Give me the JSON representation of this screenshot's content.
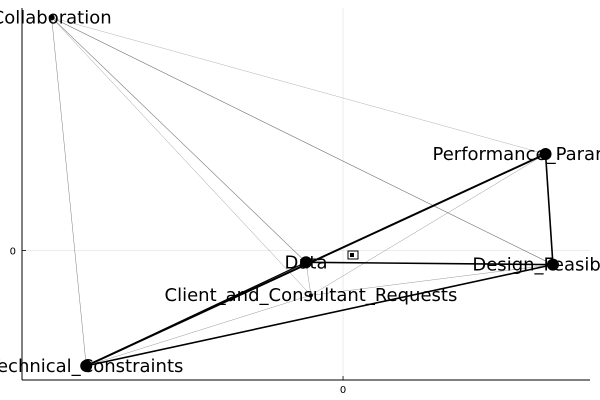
{
  "chart_data": {
    "type": "network",
    "title": "",
    "xlabel": "",
    "ylabel": "",
    "x_ticks": [
      "0"
    ],
    "y_ticks": [
      "0"
    ],
    "grid": true,
    "legend": "none",
    "nodes": [
      {
        "id": "Collaboration",
        "label": "Collaboration",
        "x": -1.18,
        "y": 0.99
      },
      {
        "id": "Performance_Parameters",
        "label": "Performance_Parameters",
        "x": 0.82,
        "y": 0.41
      },
      {
        "id": "Data",
        "label": "Data",
        "x": -0.15,
        "y": -0.05
      },
      {
        "id": "Design_Feasibility",
        "label": "Design_Feasibility",
        "x": 0.85,
        "y": -0.06
      },
      {
        "id": "Client_and_Consultant_Requests",
        "label": "Client_and_Consultant_Requests",
        "x": -0.13,
        "y": -0.19
      },
      {
        "id": "Technical_Constraints",
        "label": "Technical_Constraints",
        "x": -1.04,
        "y": -0.49
      }
    ],
    "edges": [
      {
        "source": "Collaboration",
        "target": "Performance_Parameters",
        "weight": 0.3
      },
      {
        "source": "Collaboration",
        "target": "Design_Feasibility",
        "weight": 0.6
      },
      {
        "source": "Collaboration",
        "target": "Data",
        "weight": 0.6
      },
      {
        "source": "Collaboration",
        "target": "Client_and_Consultant_Requests",
        "weight": 0.4
      },
      {
        "source": "Collaboration",
        "target": "Technical_Constraints",
        "weight": 0.5
      },
      {
        "source": "Collaboration",
        "target": "Design_Feasibility",
        "weight": 0.3
      },
      {
        "source": "Performance_Parameters",
        "target": "Design_Feasibility",
        "weight": 1.6
      },
      {
        "source": "Performance_Parameters",
        "target": "Technical_Constraints",
        "weight": 2.0
      },
      {
        "source": "Performance_Parameters",
        "target": "Client_and_Consultant_Requests",
        "weight": 0.4
      },
      {
        "source": "Data",
        "target": "Design_Feasibility",
        "weight": 1.6
      },
      {
        "source": "Data",
        "target": "Technical_Constraints",
        "weight": 1.2
      },
      {
        "source": "Data",
        "target": "Client_and_Consultant_Requests",
        "weight": 0.4
      },
      {
        "source": "Design_Feasibility",
        "target": "Technical_Constraints",
        "weight": 1.6
      },
      {
        "source": "Design_Feasibility",
        "target": "Client_and_Consultant_Requests",
        "weight": 0.4
      },
      {
        "source": "Client_and_Consultant_Requests",
        "target": "Technical_Constraints",
        "weight": 0.4
      }
    ]
  }
}
